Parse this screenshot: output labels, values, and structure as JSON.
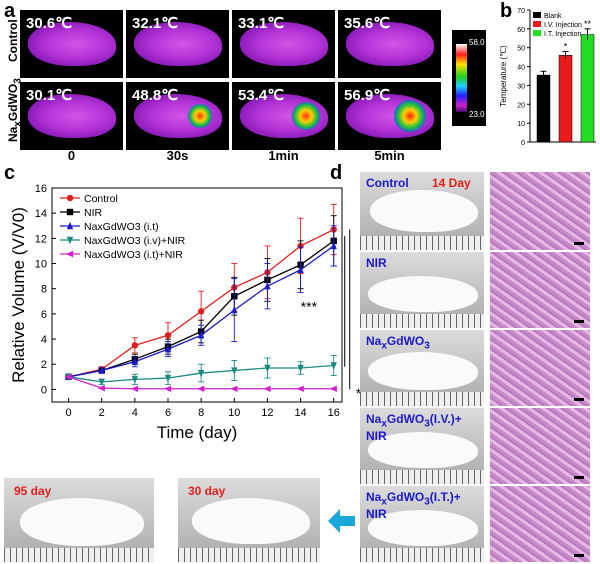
{
  "panels": {
    "a": "a",
    "b": "b",
    "c": "c",
    "d": "d"
  },
  "panel_a": {
    "row_labels": [
      "Control",
      "NaxGdWO3"
    ],
    "time_labels": [
      "0",
      "30s",
      "1min",
      "5min"
    ],
    "control_temps": [
      "30.6℃",
      "32.1℃",
      "33.1℃",
      "35.6℃"
    ],
    "treated_temps": [
      "30.1℃",
      "48.8℃",
      "53.4℃",
      "56.9℃"
    ],
    "colorbar_max": "58.0",
    "colorbar_min": "23.0"
  },
  "panel_d": {
    "day_label": "14 Day",
    "group_labels": [
      "Control",
      "NIR",
      "NaxGdWO3",
      "NaxGdWO3(I.V.)+ NIR",
      "NaxGdWO3(I.T.)+ NIR"
    ]
  },
  "bottom_photos": {
    "left_label": "95 day",
    "right_label": "30 day",
    "arrow_icon": "left-arrow-icon"
  },
  "colors": {
    "control": "#e02020",
    "nir": "#000000",
    "it": "#1a1ac8",
    "iv_nir": "#1a8a80",
    "it_nir": "#d020d0",
    "blank_bar": "#000000",
    "iv_bar": "#e81c1c",
    "it_bar": "#22dd22",
    "arrow": "#1aa6d8"
  },
  "chart_data": [
    {
      "type": "bar",
      "ylabel": "Temperature (℃)",
      "categories": [
        "Blank",
        "I.V. Injection",
        "I.T. Injection"
      ],
      "values": [
        35.5,
        46,
        57
      ],
      "errors": [
        2,
        2,
        3
      ],
      "significance": [
        "",
        "*",
        "**"
      ],
      "ylim": [
        0,
        70
      ],
      "yticks": [
        "0",
        "10",
        "20",
        "30",
        "40",
        "50",
        "60",
        "70"
      ],
      "legend": [
        "Blank",
        "I.V. Injection",
        "I.T. Injection"
      ],
      "legend_position": "top-left"
    },
    {
      "type": "line",
      "xlabel": "Time (day)",
      "ylabel": "Relative Volume (V/V0)",
      "xlim": [
        -1,
        16.5
      ],
      "ylim": [
        -1,
        16
      ],
      "xticks": [
        "0",
        "2",
        "4",
        "6",
        "8",
        "10",
        "12",
        "14",
        "16"
      ],
      "yticks": [
        "0",
        "2",
        "4",
        "6",
        "8",
        "10",
        "12",
        "14",
        "16"
      ],
      "x": [
        0,
        2,
        4,
        6,
        8,
        10,
        12,
        14,
        16
      ],
      "series": [
        {
          "name": "Control",
          "marker": "circle",
          "values": [
            1,
            1.6,
            3.5,
            4.3,
            6.2,
            8.1,
            9.3,
            11.4,
            12.7
          ],
          "errors": [
            0,
            0.2,
            0.6,
            1.0,
            1.6,
            1.9,
            2.1,
            2.2,
            2.0
          ]
        },
        {
          "name": "NIR",
          "marker": "square",
          "values": [
            1,
            1.5,
            2.4,
            3.4,
            4.6,
            7.4,
            8.7,
            9.9,
            11.8
          ],
          "errors": [
            0,
            0.2,
            0.4,
            0.6,
            0.9,
            1.5,
            1.7,
            1.9,
            2.0
          ]
        },
        {
          "name": "NaxGdWO3 (i.t)",
          "marker": "triangle-up",
          "values": [
            1,
            1.5,
            2.2,
            3.2,
            4.3,
            6.3,
            8.2,
            9.5,
            11.4
          ],
          "errors": [
            0,
            0.2,
            0.4,
            0.6,
            0.8,
            2.5,
            1.8,
            1.8,
            1.6
          ]
        },
        {
          "name": "NaxGdWO3 (i.v)+NIR",
          "marker": "triangle-down",
          "values": [
            1,
            0.6,
            0.8,
            0.9,
            1.3,
            1.5,
            1.7,
            1.7,
            1.9
          ],
          "errors": [
            0,
            0.2,
            0.4,
            0.5,
            0.7,
            0.8,
            0.8,
            0.5,
            0.8
          ]
        },
        {
          "name": "NaxGdWO3 (i.t)+NIR",
          "marker": "triangle-left",
          "values": [
            1,
            0.1,
            0.05,
            0.05,
            0.05,
            0.05,
            0.05,
            0.05,
            0.05
          ],
          "errors": [
            0,
            0,
            0,
            0,
            0,
            0,
            0,
            0,
            0
          ]
        }
      ],
      "annotations": [
        "***",
        "***"
      ],
      "legend_position": "top-left"
    }
  ]
}
